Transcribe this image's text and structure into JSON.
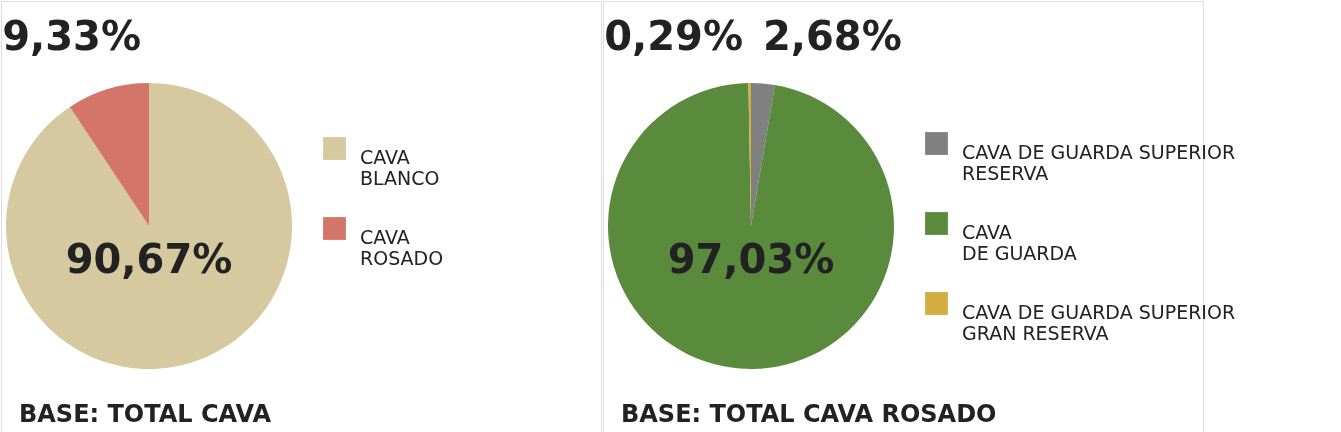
{
  "chart_data": [
    {
      "type": "pie",
      "categories": [
        "CAVA\nBLANCO",
        "CAVA\nROSADO"
      ],
      "values": [
        90.67,
        9.33
      ],
      "colors": [
        "#d6c9a0",
        "#d4756a"
      ],
      "value_labels": [
        "90,67%",
        "9,33%"
      ],
      "legend": "right",
      "annotations": [
        "BASE: TOTAL CAVA"
      ]
    },
    {
      "type": "pie",
      "categories": [
        "CAVA DE GUARDA SUPERIOR\nRESERVA",
        "CAVA\nDE GUARDA",
        "CAVA DE GUARDA SUPERIOR\nGRAN RESERVA"
      ],
      "values": [
        2.68,
        97.03,
        0.29
      ],
      "colors": [
        "#808080",
        "#5a8a3c",
        "#d4ad40"
      ],
      "value_labels": [
        "2,68%",
        "97,03%",
        "0,29%"
      ],
      "legend": "right",
      "annotations": [
        "BASE: TOTAL CAVA ROSADO"
      ]
    }
  ]
}
